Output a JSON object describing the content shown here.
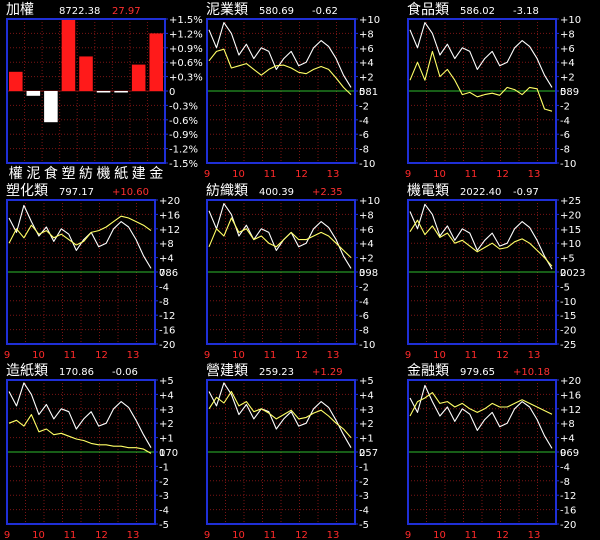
{
  "colors": {
    "background": "#000000",
    "frame": "#1f2fd6",
    "grid": "#7a1414",
    "baseline": "#2ebd2e",
    "index_line": "#ffffff",
    "sector_line": "#ffff66",
    "up": "#ff3030",
    "neutral": "#ffffff",
    "x_axis_text": "#ff2a2a",
    "bar_up": "#ff1a1a",
    "bar_down": "#ffffff"
  },
  "chart_data": [
    {
      "type": "bar",
      "title": "加權",
      "price": "8722.38",
      "change": "27.97",
      "direction": "up",
      "yticks": [
        "+1.5%",
        "+1.2%",
        "+0.9%",
        "+0.6%",
        "+0.3%",
        "0",
        "-0.3%",
        "-0.6%",
        "-0.9%",
        "-1.2%",
        "-1.5%"
      ],
      "ylim": [
        -1.5,
        1.5
      ],
      "categories": [
        "權",
        "泥",
        "食",
        "塑",
        "紡",
        "機",
        "紙",
        "建",
        "金"
      ],
      "values": [
        0.4,
        -0.1,
        -0.65,
        1.5,
        0.72,
        -0.03,
        -0.02,
        0.55,
        1.2
      ]
    },
    {
      "type": "line",
      "title": "泥業類",
      "price": "580.69",
      "change": "-0.62",
      "direction": "neutral",
      "yticks": [
        "+10",
        "+8",
        "+6",
        "+4",
        "+2",
        "0",
        "-2",
        "-4",
        "-6",
        "-8",
        "-10"
      ],
      "ylim": [
        -10,
        10
      ],
      "base_label": "581",
      "xticks": [
        "9",
        "10",
        "11",
        "12",
        "13"
      ],
      "series": [
        {
          "role": "index",
          "values": [
            8.5,
            6.0,
            9.5,
            8.0,
            5.0,
            6.5,
            4.5,
            6.0,
            5.5,
            3.0,
            4.5,
            5.5,
            3.5,
            4.0,
            6.0,
            7.0,
            6.2,
            4.5,
            2.2,
            0.5
          ]
        },
        {
          "role": "sector",
          "values": [
            4.2,
            5.5,
            5.8,
            3.2,
            3.5,
            3.8,
            3.0,
            2.2,
            3.0,
            3.5,
            3.6,
            3.2,
            2.6,
            2.4,
            3.0,
            3.4,
            3.0,
            1.8,
            0.5,
            -0.5
          ]
        }
      ]
    },
    {
      "type": "line",
      "title": "食品類",
      "price": "586.02",
      "change": "-3.18",
      "direction": "neutral",
      "yticks": [
        "+10",
        "+8",
        "+6",
        "+4",
        "+2",
        "0",
        "-2",
        "-4",
        "-6",
        "-8",
        "-10"
      ],
      "ylim": [
        -10,
        10
      ],
      "base_label": "589",
      "xticks": [
        "9",
        "10",
        "11",
        "12",
        "13"
      ],
      "series": [
        {
          "role": "index",
          "values": [
            8.5,
            6.0,
            9.5,
            8.0,
            5.0,
            6.5,
            4.5,
            6.0,
            5.5,
            3.0,
            4.5,
            5.5,
            3.5,
            4.0,
            6.0,
            7.0,
            6.2,
            4.5,
            2.2,
            0.5
          ]
        },
        {
          "role": "sector",
          "values": [
            1.5,
            4.0,
            1.5,
            5.5,
            2.0,
            3.0,
            1.5,
            -0.5,
            -0.2,
            -0.8,
            -0.5,
            -0.3,
            -0.6,
            0.5,
            0.2,
            -0.5,
            0.5,
            0.3,
            -2.5,
            -2.8
          ]
        }
      ]
    },
    {
      "type": "line",
      "title": "塑化類",
      "price": "797.17",
      "change": "+10.60",
      "direction": "up",
      "yticks": [
        "+20",
        "+16",
        "+12",
        "+8",
        "+4",
        "0",
        "-4",
        "-8",
        "-12",
        "-16",
        "-20"
      ],
      "ylim": [
        -20,
        20
      ],
      "base_label": "786",
      "xticks": [
        "9",
        "10",
        "11",
        "12",
        "13"
      ],
      "series": [
        {
          "role": "index",
          "values": [
            15.0,
            11.0,
            18.5,
            14.0,
            10.0,
            12.5,
            8.5,
            12.0,
            10.5,
            6.0,
            9.0,
            11.0,
            7.0,
            8.0,
            12.0,
            14.0,
            12.5,
            9.0,
            4.5,
            1.0
          ]
        },
        {
          "role": "sector",
          "values": [
            8.0,
            12.0,
            9.5,
            13.0,
            10.5,
            11.5,
            9.5,
            10.5,
            9.0,
            7.5,
            8.5,
            11.0,
            11.5,
            12.5,
            14.0,
            15.5,
            15.0,
            14.0,
            13.0,
            11.5
          ]
        }
      ]
    },
    {
      "type": "line",
      "title": "紡織類",
      "price": "400.39",
      "change": "+2.35",
      "direction": "up",
      "yticks": [
        "+10",
        "+8",
        "+6",
        "+4",
        "+2",
        "0",
        "-2",
        "-4",
        "-6",
        "-8",
        "-10"
      ],
      "ylim": [
        -10,
        10
      ],
      "base_label": "398",
      "xticks": [
        "9",
        "10",
        "11",
        "12",
        "13"
      ],
      "series": [
        {
          "role": "index",
          "values": [
            8.5,
            6.0,
            9.5,
            8.0,
            5.0,
            6.5,
            4.5,
            6.0,
            5.5,
            3.0,
            4.5,
            5.5,
            3.5,
            4.0,
            6.0,
            7.0,
            6.2,
            4.5,
            2.2,
            0.5
          ]
        },
        {
          "role": "sector",
          "values": [
            3.5,
            6.0,
            5.0,
            7.5,
            5.5,
            6.0,
            4.5,
            5.0,
            4.0,
            3.5,
            4.5,
            5.5,
            4.5,
            4.5,
            5.0,
            5.5,
            5.0,
            4.0,
            3.0,
            2.0
          ]
        }
      ]
    },
    {
      "type": "line",
      "title": "機電類",
      "price": "2022.40",
      "change": "-0.97",
      "direction": "neutral",
      "yticks": [
        "+25",
        "+20",
        "+15",
        "+10",
        "+5",
        "0",
        "-5",
        "-10",
        "-15",
        "-20",
        "-25"
      ],
      "ylim": [
        -25,
        25
      ],
      "base_label": "2023",
      "xticks": [
        "9",
        "10",
        "11",
        "12",
        "13"
      ],
      "series": [
        {
          "role": "index",
          "values": [
            21.0,
            15.0,
            23.5,
            20.0,
            12.5,
            16.0,
            11.0,
            15.0,
            13.5,
            7.5,
            11.0,
            13.5,
            9.0,
            10.0,
            15.0,
            17.5,
            15.5,
            11.0,
            5.5,
            1.0
          ]
        },
        {
          "role": "sector",
          "values": [
            14.0,
            18.0,
            13.0,
            16.0,
            12.0,
            13.5,
            10.0,
            11.0,
            9.0,
            7.0,
            8.5,
            10.0,
            8.0,
            8.5,
            10.5,
            11.5,
            10.0,
            7.5,
            5.0,
            2.0
          ]
        }
      ]
    },
    {
      "type": "line",
      "title": "造紙類",
      "price": "170.86",
      "change": "-0.06",
      "direction": "neutral",
      "yticks": [
        "+5",
        "+4",
        "+3",
        "+2",
        "+1",
        "0",
        "-1",
        "-2",
        "-3",
        "-4",
        "-5"
      ],
      "ylim": [
        -5,
        5
      ],
      "base_label": "170",
      "xticks": [
        "9",
        "10",
        "11",
        "12",
        "13"
      ],
      "series": [
        {
          "role": "index",
          "values": [
            4.2,
            3.2,
            4.8,
            4.0,
            2.6,
            3.3,
            2.3,
            3.0,
            2.8,
            1.6,
            2.3,
            2.8,
            1.8,
            2.0,
            3.0,
            3.5,
            3.1,
            2.2,
            1.2,
            0.3
          ]
        },
        {
          "role": "sector",
          "values": [
            2.0,
            2.2,
            1.8,
            2.6,
            1.4,
            1.6,
            1.2,
            1.3,
            1.1,
            0.9,
            0.8,
            0.6,
            0.5,
            0.5,
            0.4,
            0.4,
            0.3,
            0.3,
            0.2,
            -0.1
          ]
        }
      ]
    },
    {
      "type": "line",
      "title": "營建類",
      "price": "259.23",
      "change": "+1.29",
      "direction": "up",
      "yticks": [
        "+5",
        "+4",
        "+3",
        "+2",
        "+1",
        "0",
        "-1",
        "-2",
        "-3",
        "-4",
        "-5"
      ],
      "ylim": [
        -5,
        5
      ],
      "base_label": "257",
      "xticks": [
        "9",
        "10",
        "11",
        "12",
        "13"
      ],
      "series": [
        {
          "role": "index",
          "values": [
            4.2,
            3.2,
            4.8,
            4.0,
            2.6,
            3.3,
            2.3,
            3.0,
            2.8,
            1.6,
            2.3,
            2.8,
            1.8,
            2.0,
            3.0,
            3.5,
            3.1,
            2.2,
            1.2,
            0.3
          ]
        },
        {
          "role": "sector",
          "values": [
            3.0,
            3.8,
            3.4,
            4.2,
            3.2,
            3.5,
            2.8,
            3.0,
            2.7,
            2.3,
            2.6,
            2.9,
            2.3,
            2.4,
            2.7,
            2.9,
            2.5,
            2.0,
            1.6,
            1.0
          ]
        }
      ]
    },
    {
      "type": "line",
      "title": "金融類",
      "price": "979.65",
      "change": "+10.18",
      "direction": "up",
      "yticks": [
        "+20",
        "+16",
        "+12",
        "+8",
        "+4",
        "0",
        "-4",
        "-8",
        "-12",
        "-16",
        "-20"
      ],
      "ylim": [
        -20,
        20
      ],
      "base_label": "969",
      "xticks": [
        "9",
        "10",
        "11",
        "12",
        "13"
      ],
      "series": [
        {
          "role": "index",
          "values": [
            15.0,
            11.0,
            18.5,
            14.0,
            10.0,
            12.5,
            8.5,
            12.0,
            10.5,
            6.0,
            9.0,
            11.0,
            7.0,
            8.0,
            12.0,
            14.0,
            12.5,
            9.0,
            4.5,
            1.0
          ]
        },
        {
          "role": "sector",
          "values": [
            10.0,
            14.0,
            15.0,
            16.5,
            13.5,
            14.0,
            12.5,
            13.5,
            12.0,
            11.0,
            12.0,
            13.5,
            12.5,
            12.5,
            13.5,
            14.5,
            13.5,
            12.5,
            11.5,
            10.5
          ]
        }
      ]
    }
  ]
}
